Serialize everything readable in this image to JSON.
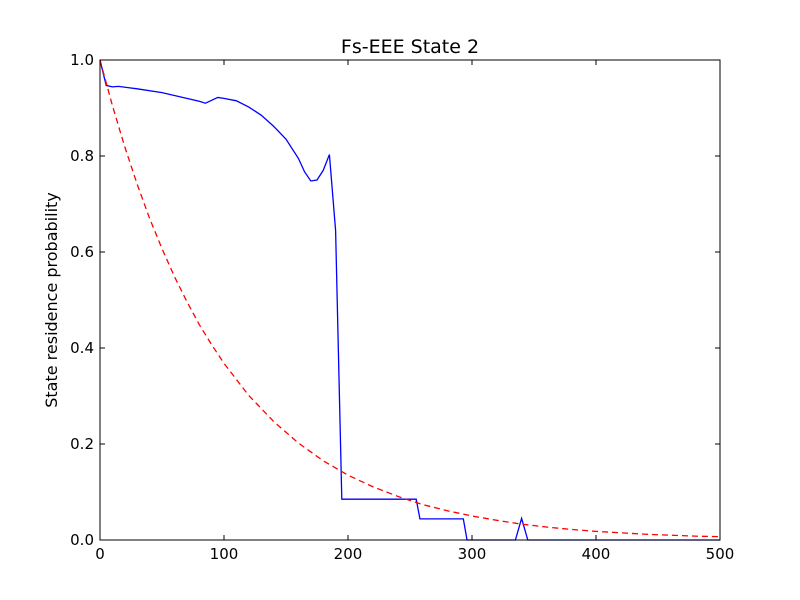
{
  "chart_data": {
    "type": "line",
    "title": "Fs-EEE State 2",
    "xlabel": "",
    "ylabel": "State residence probability",
    "xlim": [
      0,
      500
    ],
    "ylim": [
      0.0,
      1.0
    ],
    "x_ticks": [
      "0",
      "100",
      "200",
      "300",
      "400",
      "500"
    ],
    "y_ticks": [
      "0.0",
      "0.2",
      "0.4",
      "0.6",
      "0.8",
      "1.0"
    ],
    "grid": false,
    "legend": "none",
    "series": [
      {
        "style": "solid",
        "color": "#0000ff",
        "x": [
          0,
          5,
          10,
          15,
          30,
          50,
          70,
          80,
          85,
          90,
          95,
          100,
          110,
          120,
          130,
          140,
          150,
          160,
          165,
          170,
          175,
          180,
          185,
          190,
          195,
          240,
          255,
          258,
          290,
          293,
          296,
          335,
          340,
          345,
          500
        ],
        "y": [
          1.0,
          0.947,
          0.944,
          0.945,
          0.94,
          0.932,
          0.92,
          0.914,
          0.91,
          0.916,
          0.922,
          0.92,
          0.915,
          0.902,
          0.885,
          0.862,
          0.835,
          0.795,
          0.767,
          0.748,
          0.75,
          0.77,
          0.803,
          0.645,
          0.085,
          0.085,
          0.085,
          0.044,
          0.044,
          0.044,
          0.0,
          0.0,
          0.045,
          0.0,
          0.0
        ]
      },
      {
        "style": "dashed",
        "color": "#ff0000",
        "x": [
          0,
          10,
          20,
          30,
          40,
          50,
          60,
          70,
          80,
          90,
          100,
          120,
          140,
          160,
          180,
          200,
          220,
          240,
          260,
          280,
          300,
          320,
          340,
          360,
          380,
          400,
          420,
          440,
          460,
          480,
          500
        ],
        "y": [
          1.0,
          0.905,
          0.819,
          0.741,
          0.67,
          0.607,
          0.549,
          0.497,
          0.449,
          0.407,
          0.368,
          0.301,
          0.247,
          0.202,
          0.165,
          0.135,
          0.111,
          0.091,
          0.074,
          0.061,
          0.05,
          0.041,
          0.033,
          0.027,
          0.022,
          0.018,
          0.015,
          0.012,
          0.01,
          0.008,
          0.007
        ]
      }
    ]
  }
}
